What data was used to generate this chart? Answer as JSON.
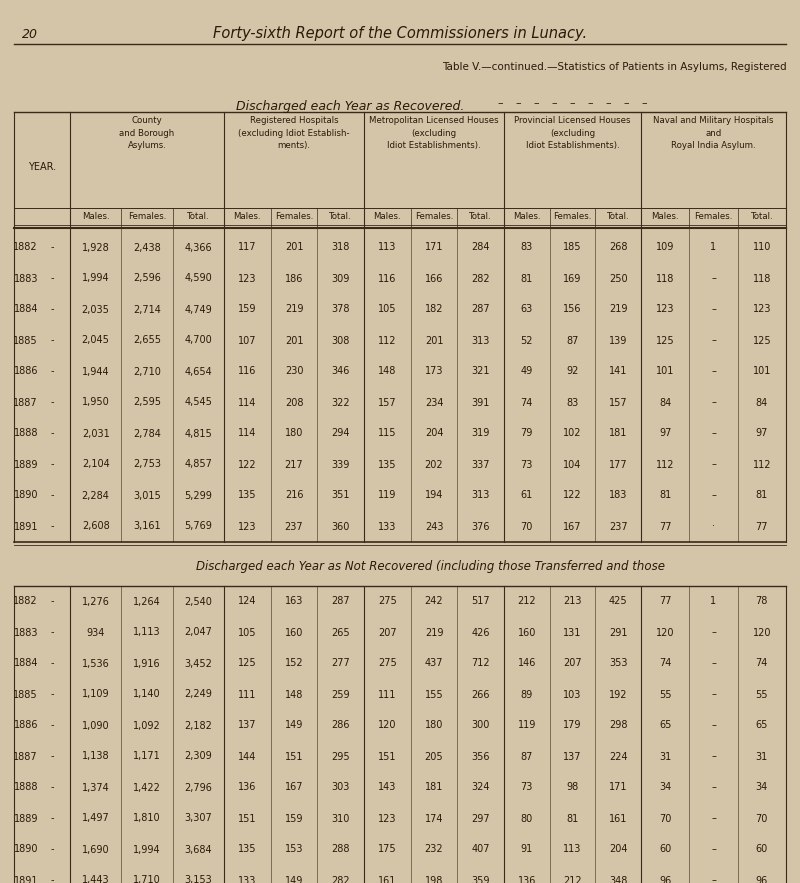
{
  "page_number": "20",
  "page_header": "Forty-sixth Report of the Commissioners in Lunacy.",
  "table_title": "Table V.—continued.—Statistics of Patients in Asylums, Registered",
  "section1_title": "Discharged each Year as Recovered.",
  "section2_title": "Discharged each Year as Not Recovered (including those Transferred and those",
  "bg_color": "#d4c4a8",
  "text_color": "#2a1a0a",
  "col_groups": [
    "County\nand Borough\nAsylums.",
    "Registered Hospitals\n(excluding Idiot Establish-\nments).",
    "Metropolitan Licensed Houses\n(excluding\nIdiot Establishments).",
    "Provincial Licensed Houses\n(excluding\nIdiot Establishments).",
    "Naval and Military Hospitals\nand\nRoyal India Asylum."
  ],
  "recovered_rows": [
    {
      "year": "1882",
      "data": [
        [
          "1,928",
          "2,438",
          "4,366"
        ],
        [
          "117",
          "201",
          "318"
        ],
        [
          "113",
          "171",
          "284"
        ],
        [
          "83",
          "185",
          "268"
        ],
        [
          "109",
          "1",
          "110"
        ]
      ]
    },
    {
      "year": "1883",
      "data": [
        [
          "1,994",
          "2,596",
          "4,590"
        ],
        [
          "123",
          "186",
          "309"
        ],
        [
          "116",
          "166",
          "282"
        ],
        [
          "81",
          "169",
          "250"
        ],
        [
          "118",
          "–",
          "118"
        ]
      ]
    },
    {
      "year": "1884",
      "data": [
        [
          "2,035",
          "2,714",
          "4,749"
        ],
        [
          "159",
          "219",
          "378"
        ],
        [
          "105",
          "182",
          "287"
        ],
        [
          "63",
          "156",
          "219"
        ],
        [
          "123",
          "–",
          "123"
        ]
      ]
    },
    {
      "year": "1885",
      "data": [
        [
          "2,045",
          "2,655",
          "4,700"
        ],
        [
          "107",
          "201",
          "308"
        ],
        [
          "112",
          "201",
          "313"
        ],
        [
          "52",
          "87",
          "139"
        ],
        [
          "125",
          "–",
          "125"
        ]
      ]
    },
    {
      "year": "1886",
      "data": [
        [
          "1,944",
          "2,710",
          "4,654"
        ],
        [
          "116",
          "230",
          "346"
        ],
        [
          "148",
          "173",
          "321"
        ],
        [
          "49",
          "92",
          "141"
        ],
        [
          "101",
          "–",
          "101"
        ]
      ]
    },
    {
      "year": "1887",
      "data": [
        [
          "1,950",
          "2,595",
          "4,545"
        ],
        [
          "114",
          "208",
          "322"
        ],
        [
          "157",
          "234",
          "391"
        ],
        [
          "74",
          "83",
          "157"
        ],
        [
          "84",
          "–",
          "84"
        ]
      ]
    },
    {
      "year": "1888",
      "data": [
        [
          "2,031",
          "2,784",
          "4,815"
        ],
        [
          "114",
          "180",
          "294"
        ],
        [
          "115",
          "204",
          "319"
        ],
        [
          "79",
          "102",
          "181"
        ],
        [
          "97",
          "–",
          "97"
        ]
      ]
    },
    {
      "year": "1889",
      "data": [
        [
          "2,104",
          "2,753",
          "4,857"
        ],
        [
          "122",
          "217",
          "339"
        ],
        [
          "135",
          "202",
          "337"
        ],
        [
          "73",
          "104",
          "177"
        ],
        [
          "112",
          "–",
          "112"
        ]
      ]
    },
    {
      "year": "1890",
      "data": [
        [
          "2,284",
          "3,015",
          "5,299"
        ],
        [
          "135",
          "216",
          "351"
        ],
        [
          "119",
          "194",
          "313"
        ],
        [
          "61",
          "122",
          "183"
        ],
        [
          "81",
          "–",
          "81"
        ]
      ]
    },
    {
      "year": "1891",
      "data": [
        [
          "2,608",
          "3,161",
          "5,769"
        ],
        [
          "123",
          "237",
          "360"
        ],
        [
          "133",
          "243",
          "376"
        ],
        [
          "70",
          "167",
          "237"
        ],
        [
          "77",
          "·",
          "77"
        ]
      ]
    }
  ],
  "not_recovered_rows": [
    {
      "year": "1882",
      "data": [
        [
          "1,276",
          "1,264",
          "2,540"
        ],
        [
          "124",
          "163",
          "287"
        ],
        [
          "275",
          "242",
          "517"
        ],
        [
          "212",
          "213",
          "425"
        ],
        [
          "77",
          "1",
          "78"
        ]
      ]
    },
    {
      "year": "1883",
      "data": [
        [
          "934",
          "1,113",
          "2,047"
        ],
        [
          "105",
          "160",
          "265"
        ],
        [
          "207",
          "219",
          "426"
        ],
        [
          "160",
          "131",
          "291"
        ],
        [
          "120",
          "–",
          "120"
        ]
      ]
    },
    {
      "year": "1884",
      "data": [
        [
          "1,536",
          "1,916",
          "3,452"
        ],
        [
          "125",
          "152",
          "277"
        ],
        [
          "275",
          "437",
          "712"
        ],
        [
          "146",
          "207",
          "353"
        ],
        [
          "74",
          "–",
          "74"
        ]
      ]
    },
    {
      "year": "1885",
      "data": [
        [
          "1,109",
          "1,140",
          "2,249"
        ],
        [
          "111",
          "148",
          "259"
        ],
        [
          "111",
          "155",
          "266"
        ],
        [
          "89",
          "103",
          "192"
        ],
        [
          "55",
          "–",
          "55"
        ]
      ]
    },
    {
      "year": "1886",
      "data": [
        [
          "1,090",
          "1,092",
          "2,182"
        ],
        [
          "137",
          "149",
          "286"
        ],
        [
          "120",
          "180",
          "300"
        ],
        [
          "119",
          "179",
          "298"
        ],
        [
          "65",
          "–",
          "65"
        ]
      ]
    },
    {
      "year": "1887",
      "data": [
        [
          "1,138",
          "1,171",
          "2,309"
        ],
        [
          "144",
          "151",
          "295"
        ],
        [
          "151",
          "205",
          "356"
        ],
        [
          "87",
          "137",
          "224"
        ],
        [
          "31",
          "–",
          "31"
        ]
      ]
    },
    {
      "year": "1888",
      "data": [
        [
          "1,374",
          "1,422",
          "2,796"
        ],
        [
          "136",
          "167",
          "303"
        ],
        [
          "143",
          "181",
          "324"
        ],
        [
          "73",
          "98",
          "171"
        ],
        [
          "34",
          "–",
          "34"
        ]
      ]
    },
    {
      "year": "1889",
      "data": [
        [
          "1,497",
          "1,810",
          "3,307"
        ],
        [
          "151",
          "159",
          "310"
        ],
        [
          "123",
          "174",
          "297"
        ],
        [
          "80",
          "81",
          "161"
        ],
        [
          "70",
          "–",
          "70"
        ]
      ]
    },
    {
      "year": "1890",
      "data": [
        [
          "1,690",
          "1,994",
          "3,684"
        ],
        [
          "135",
          "153",
          "288"
        ],
        [
          "175",
          "232",
          "407"
        ],
        [
          "91",
          "113",
          "204"
        ],
        [
          "60",
          "–",
          "60"
        ]
      ]
    },
    {
      "year": "1891",
      "data": [
        [
          "1,443",
          "1,710",
          "3,153"
        ],
        [
          "133",
          "149",
          "282"
        ],
        [
          "161",
          "198",
          "359"
        ],
        [
          "136",
          "212",
          "348"
        ],
        [
          "96",
          "–",
          "96"
        ]
      ]
    }
  ]
}
